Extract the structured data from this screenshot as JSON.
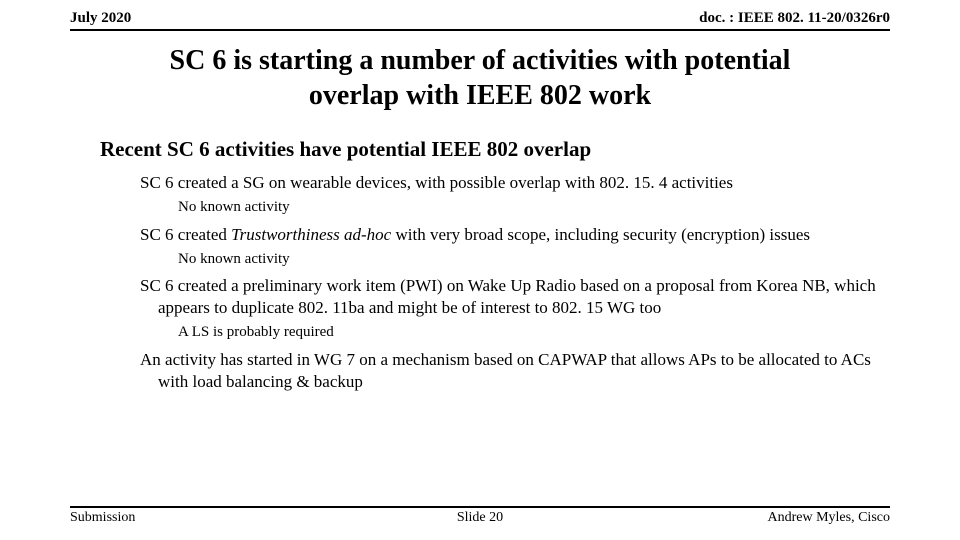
{
  "header": {
    "left": "July 2020",
    "right": "doc. : IEEE 802. 11-20/0326r0"
  },
  "title_line1": "SC 6 is starting a number of activities with potential",
  "title_line2": "overlap with IEEE 802 work",
  "section_heading": "Recent SC 6 activities have potential IEEE 802 overlap",
  "bullets": {
    "b1": "SC 6 created a SG on wearable devices, with possible overlap with 802. 15. 4 activities",
    "b1a": "No known activity",
    "b2_pre": "SC 6 created ",
    "b2_italic": "Trustworthiness ad-hoc",
    "b2_post": " with very broad scope, including security (encryption) issues",
    "b2a": "No known activity",
    "b3": "SC 6 created a preliminary work item (PWI) on Wake Up Radio based on a proposal from Korea NB, which appears to duplicate 802. 11ba and might be of interest to 802. 15 WG too",
    "b3a": "A LS is probably required",
    "b4": "An activity has started in WG 7 on a mechanism based on CAPWAP that allows APs to be allocated to ACs with load balancing & backup"
  },
  "footer": {
    "left": "Submission",
    "center": "Slide 20",
    "right": "Andrew Myles, Cisco"
  }
}
